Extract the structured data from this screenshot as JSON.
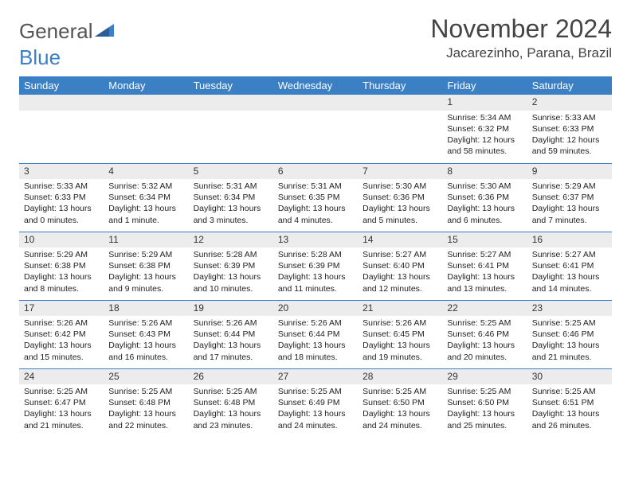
{
  "logo": {
    "word1": "General",
    "word2": "Blue"
  },
  "title": "November 2024",
  "location": "Jacarezinho, Parana, Brazil",
  "colors": {
    "header_bg": "#3b7fc4",
    "header_text": "#ffffff",
    "daynum_bg": "#ececec",
    "row_border": "#3b7fc4",
    "page_bg": "#ffffff",
    "title_text": "#444444"
  },
  "days_of_week": [
    "Sunday",
    "Monday",
    "Tuesday",
    "Wednesday",
    "Thursday",
    "Friday",
    "Saturday"
  ],
  "weeks": [
    [
      null,
      null,
      null,
      null,
      null,
      {
        "n": "1",
        "sr": "5:34 AM",
        "ss": "6:32 PM",
        "dl": "12 hours and 58 minutes."
      },
      {
        "n": "2",
        "sr": "5:33 AM",
        "ss": "6:33 PM",
        "dl": "12 hours and 59 minutes."
      }
    ],
    [
      {
        "n": "3",
        "sr": "5:33 AM",
        "ss": "6:33 PM",
        "dl": "13 hours and 0 minutes."
      },
      {
        "n": "4",
        "sr": "5:32 AM",
        "ss": "6:34 PM",
        "dl": "13 hours and 1 minute."
      },
      {
        "n": "5",
        "sr": "5:31 AM",
        "ss": "6:34 PM",
        "dl": "13 hours and 3 minutes."
      },
      {
        "n": "6",
        "sr": "5:31 AM",
        "ss": "6:35 PM",
        "dl": "13 hours and 4 minutes."
      },
      {
        "n": "7",
        "sr": "5:30 AM",
        "ss": "6:36 PM",
        "dl": "13 hours and 5 minutes."
      },
      {
        "n": "8",
        "sr": "5:30 AM",
        "ss": "6:36 PM",
        "dl": "13 hours and 6 minutes."
      },
      {
        "n": "9",
        "sr": "5:29 AM",
        "ss": "6:37 PM",
        "dl": "13 hours and 7 minutes."
      }
    ],
    [
      {
        "n": "10",
        "sr": "5:29 AM",
        "ss": "6:38 PM",
        "dl": "13 hours and 8 minutes."
      },
      {
        "n": "11",
        "sr": "5:29 AM",
        "ss": "6:38 PM",
        "dl": "13 hours and 9 minutes."
      },
      {
        "n": "12",
        "sr": "5:28 AM",
        "ss": "6:39 PM",
        "dl": "13 hours and 10 minutes."
      },
      {
        "n": "13",
        "sr": "5:28 AM",
        "ss": "6:39 PM",
        "dl": "13 hours and 11 minutes."
      },
      {
        "n": "14",
        "sr": "5:27 AM",
        "ss": "6:40 PM",
        "dl": "13 hours and 12 minutes."
      },
      {
        "n": "15",
        "sr": "5:27 AM",
        "ss": "6:41 PM",
        "dl": "13 hours and 13 minutes."
      },
      {
        "n": "16",
        "sr": "5:27 AM",
        "ss": "6:41 PM",
        "dl": "13 hours and 14 minutes."
      }
    ],
    [
      {
        "n": "17",
        "sr": "5:26 AM",
        "ss": "6:42 PM",
        "dl": "13 hours and 15 minutes."
      },
      {
        "n": "18",
        "sr": "5:26 AM",
        "ss": "6:43 PM",
        "dl": "13 hours and 16 minutes."
      },
      {
        "n": "19",
        "sr": "5:26 AM",
        "ss": "6:44 PM",
        "dl": "13 hours and 17 minutes."
      },
      {
        "n": "20",
        "sr": "5:26 AM",
        "ss": "6:44 PM",
        "dl": "13 hours and 18 minutes."
      },
      {
        "n": "21",
        "sr": "5:26 AM",
        "ss": "6:45 PM",
        "dl": "13 hours and 19 minutes."
      },
      {
        "n": "22",
        "sr": "5:25 AM",
        "ss": "6:46 PM",
        "dl": "13 hours and 20 minutes."
      },
      {
        "n": "23",
        "sr": "5:25 AM",
        "ss": "6:46 PM",
        "dl": "13 hours and 21 minutes."
      }
    ],
    [
      {
        "n": "24",
        "sr": "5:25 AM",
        "ss": "6:47 PM",
        "dl": "13 hours and 21 minutes."
      },
      {
        "n": "25",
        "sr": "5:25 AM",
        "ss": "6:48 PM",
        "dl": "13 hours and 22 minutes."
      },
      {
        "n": "26",
        "sr": "5:25 AM",
        "ss": "6:48 PM",
        "dl": "13 hours and 23 minutes."
      },
      {
        "n": "27",
        "sr": "5:25 AM",
        "ss": "6:49 PM",
        "dl": "13 hours and 24 minutes."
      },
      {
        "n": "28",
        "sr": "5:25 AM",
        "ss": "6:50 PM",
        "dl": "13 hours and 24 minutes."
      },
      {
        "n": "29",
        "sr": "5:25 AM",
        "ss": "6:50 PM",
        "dl": "13 hours and 25 minutes."
      },
      {
        "n": "30",
        "sr": "5:25 AM",
        "ss": "6:51 PM",
        "dl": "13 hours and 26 minutes."
      }
    ]
  ],
  "labels": {
    "sunrise": "Sunrise: ",
    "sunset": "Sunset: ",
    "daylight": "Daylight: "
  }
}
